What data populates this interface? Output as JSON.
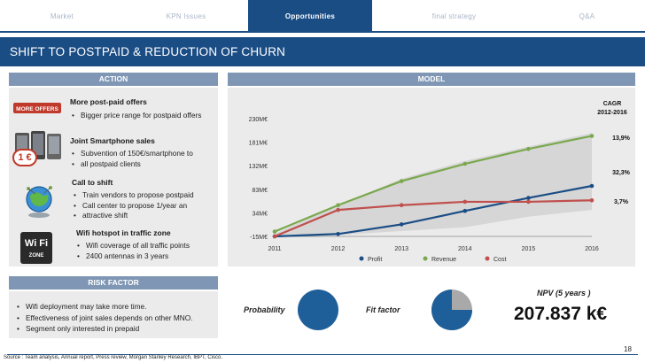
{
  "nav": {
    "tabs": [
      {
        "label": "Market",
        "active": false
      },
      {
        "label": "KPN Issues",
        "active": false
      },
      {
        "label": "Opportunities",
        "active": true
      },
      {
        "label": "final strategy",
        "active": false
      },
      {
        "label": "Q&A",
        "active": false
      }
    ]
  },
  "title": "SHIFT TO POSTPAID & REDUCTION OF CHURN",
  "action": {
    "header": "ACTION",
    "offers_icon_text": "MORE OFFERS",
    "euro_badge": "1 €",
    "wifi_icon": {
      "word": "Wi Fi",
      "zone": "ZONE"
    },
    "items": [
      {
        "title": "More post-paid offers",
        "bullets": [
          "Bigger price range for postpaid offers"
        ]
      },
      {
        "title": "Joint Smartphone sales",
        "bullets": [
          "Subvention of 150€/smartphone to",
          "all postpaid clients"
        ]
      },
      {
        "title": "Call to shift",
        "bullets": [
          "Train vendors to propose postpaid",
          "Call center to propose 1/year an",
          "attractive shift"
        ]
      },
      {
        "title": "Wifi hotspot in traffic zone",
        "bullets": [
          "Wifi coverage of all traffic points",
          "2400 antennas in 3 years"
        ]
      }
    ]
  },
  "model": {
    "header": "MODEL",
    "cagr_title": [
      "CAGR",
      "2012-2016"
    ],
    "cagr_values": [
      "13,9%",
      "32,3%",
      "3,7%"
    ]
  },
  "chart_data": {
    "type": "line",
    "x": [
      2011,
      2012,
      2013,
      2014,
      2015,
      2016
    ],
    "y_ticks": [
      "230M€",
      "181M€",
      "132M€",
      "83M€",
      "34M€",
      "-15M€"
    ],
    "ylim": [
      -15,
      230
    ],
    "series": [
      {
        "name": "Profit",
        "color": "#1b4d85",
        "values": [
          -15,
          -10,
          10,
          38,
          65,
          90
        ]
      },
      {
        "name": "Revenue",
        "color": "#7aa84d",
        "values": [
          -5,
          50,
          100,
          136,
          167,
          194
        ]
      },
      {
        "name": "Cost",
        "color": "#c0504d",
        "values": [
          -15,
          40,
          50,
          57,
          57,
          60
        ]
      }
    ],
    "band": {
      "upper": [
        -10,
        50,
        105,
        142,
        172,
        200
      ],
      "lower": [
        -15,
        -12,
        -4,
        4,
        26,
        40
      ]
    },
    "legend_position": "bottom"
  },
  "risk": {
    "header": "RISK FACTOR",
    "bullets": [
      "Wifi deployment may take more time.",
      "Effectiveness of joint sales depends on other MNO.",
      "Segment only interested in prepaid"
    ],
    "probability_label": "Probability",
    "probability_fraction": 1.0,
    "fit_label": "Fit factor",
    "fit_fraction": 0.75,
    "npv_label": "NPV (5 years )",
    "npv_value": "207.837 k€"
  },
  "colors": {
    "brand": "#1b4d85",
    "section": "#7f97b5",
    "panel": "#ebebeb",
    "pie_fill": "#1f5f99",
    "pie_empty": "#a9a9a9"
  },
  "footer": {
    "source": "Source : Team analysis, Annual report, Press review, Morgan Stanley Research, IBPT, Cisco.",
    "page": "18"
  }
}
